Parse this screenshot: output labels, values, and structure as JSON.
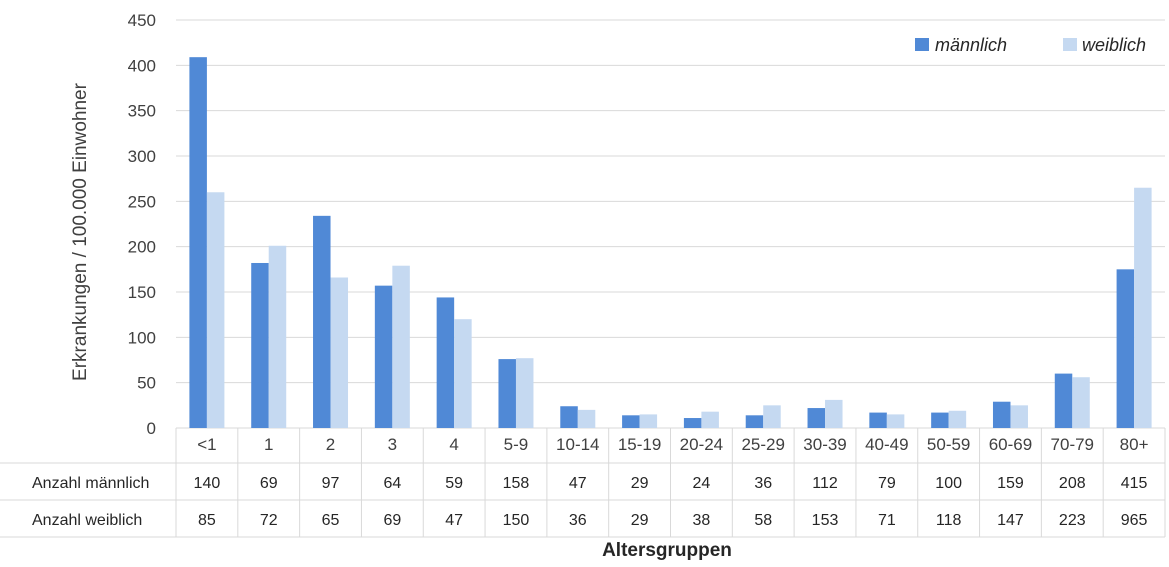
{
  "colors": {
    "male": "#5089D6",
    "female": "#C5D9F1",
    "grid": "#D9D9D9",
    "text": "#262626"
  },
  "chart_data": {
    "type": "bar",
    "categories": [
      "<1",
      "1",
      "2",
      "3",
      "4",
      "5-9",
      "10-14",
      "15-19",
      "20-24",
      "25-29",
      "30-39",
      "40-49",
      "50-59",
      "60-69",
      "70-79",
      "80+"
    ],
    "series": [
      {
        "name": "männlich",
        "values": [
          409,
          182,
          234,
          157,
          144,
          76,
          24,
          14,
          11,
          14,
          22,
          17,
          17,
          29,
          60,
          175
        ]
      },
      {
        "name": "weiblich",
        "values": [
          260,
          201,
          166,
          179,
          120,
          77,
          20,
          15,
          18,
          25,
          31,
          15,
          19,
          25,
          56,
          265
        ]
      }
    ],
    "ylabel": "Erkrankungen / 100.000 Einwohner",
    "xlabel": "Altersgruppen",
    "ylim": [
      0,
      450
    ],
    "yticks": [
      0,
      50,
      100,
      150,
      200,
      250,
      300,
      350,
      400,
      450
    ],
    "grid": true,
    "legend_position": "top-right",
    "table": {
      "rows": [
        {
          "label": "Anzahl männlich",
          "values": [
            "140",
            "69",
            "97",
            "64",
            "59",
            "158",
            "47",
            "29",
            "24",
            "36",
            "112",
            "79",
            "100",
            "159",
            "208",
            "415"
          ]
        },
        {
          "label": "Anzahl weiblich",
          "values": [
            "85",
            "72",
            "65",
            "69",
            "47",
            "150",
            "36",
            "29",
            "38",
            "58",
            "153",
            "71",
            "118",
            "147",
            "223",
            "965"
          ]
        }
      ]
    }
  }
}
